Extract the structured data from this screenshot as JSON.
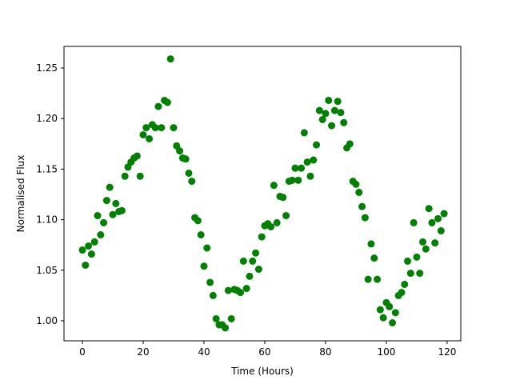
{
  "chart_data": {
    "type": "scatter",
    "x_label": "Time (Hours)",
    "y_label": "Normalised Flux",
    "color": "#008000",
    "x": [
      0,
      1,
      2,
      3,
      4,
      5,
      6,
      7,
      8,
      9,
      10,
      11,
      12,
      13,
      14,
      15,
      16,
      17,
      18,
      19,
      20,
      21,
      22,
      23,
      24,
      25,
      26,
      27,
      28,
      29,
      30,
      31,
      32,
      33,
      34,
      35,
      36,
      37,
      38,
      39,
      40,
      41,
      42,
      43,
      44,
      45,
      46,
      47,
      48,
      49,
      50,
      51,
      52,
      53,
      54,
      55,
      56,
      57,
      58,
      59,
      60,
      61,
      62,
      63,
      64,
      65,
      66,
      67,
      68,
      69,
      70,
      71,
      72,
      73,
      74,
      75,
      76,
      77,
      78,
      79,
      80,
      81,
      82,
      83,
      84,
      85,
      86,
      87,
      88,
      89,
      90,
      91,
      92,
      93,
      94,
      95,
      96,
      97,
      98,
      99,
      100,
      101,
      102,
      103,
      104,
      105,
      106,
      107,
      108,
      109,
      110,
      111,
      112,
      113,
      114,
      115,
      116,
      117,
      118,
      119
    ],
    "y": [
      1.07,
      1.055,
      1.074,
      1.066,
      1.078,
      1.104,
      1.085,
      1.097,
      1.119,
      1.132,
      1.105,
      1.116,
      1.108,
      1.109,
      1.143,
      1.152,
      1.157,
      1.161,
      1.163,
      1.143,
      1.184,
      1.191,
      1.18,
      1.194,
      1.191,
      1.212,
      1.191,
      1.218,
      1.216,
      1.259,
      1.191,
      1.173,
      1.168,
      1.161,
      1.16,
      1.146,
      1.138,
      1.102,
      1.099,
      1.085,
      1.054,
      1.072,
      1.038,
      1.025,
      1.002,
      0.996,
      0.996,
      0.993,
      1.03,
      1.002,
      1.031,
      1.03,
      1.028,
      1.059,
      1.032,
      1.044,
      1.059,
      1.067,
      1.051,
      1.083,
      1.094,
      1.096,
      1.093,
      1.134,
      1.097,
      1.123,
      1.122,
      1.104,
      1.138,
      1.139,
      1.151,
      1.139,
      1.151,
      1.186,
      1.157,
      1.143,
      1.159,
      1.174,
      1.208,
      1.199,
      1.205,
      1.218,
      1.193,
      1.208,
      1.217,
      1.206,
      1.196,
      1.171,
      1.175,
      1.138,
      1.135,
      1.127,
      1.113,
      1.102,
      1.041,
      1.076,
      1.062,
      1.041,
      1.011,
      1.003,
      1.018,
      1.014,
      0.998,
      1.008,
      1.025,
      1.028,
      1.036,
      1.059,
      1.047,
      1.097,
      1.063,
      1.047,
      1.078,
      1.071,
      1.111,
      1.097,
      1.077,
      1.101,
      1.089,
      1.106
    ],
    "xlim": [
      -6.05,
      124.5
    ],
    "ylim": [
      0.9802,
      1.2714
    ],
    "xticks": [
      0,
      20,
      40,
      60,
      80,
      100,
      120
    ],
    "yticks": [
      {
        "value": 1.0,
        "label": "1.00"
      },
      {
        "value": 1.05,
        "label": "1.05"
      },
      {
        "value": 1.1,
        "label": "1.10"
      },
      {
        "value": 1.15,
        "label": "1.15"
      },
      {
        "value": 1.2,
        "label": "1.20"
      },
      {
        "value": 1.25,
        "label": "1.25"
      }
    ]
  }
}
